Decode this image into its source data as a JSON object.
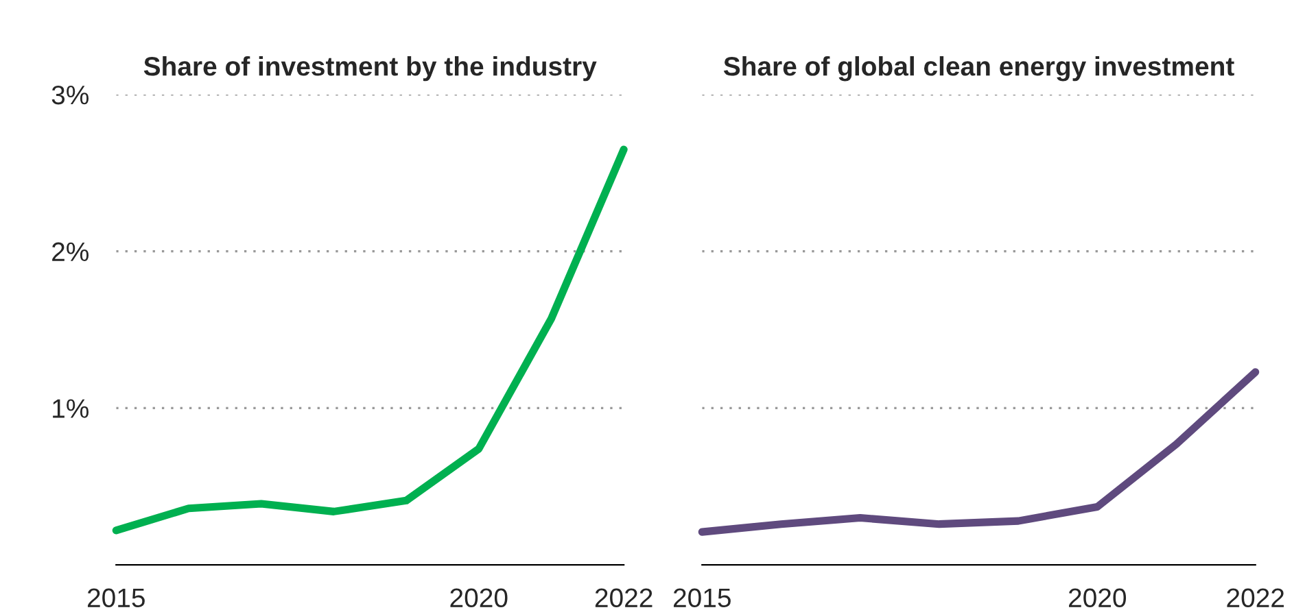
{
  "chart_data": [
    {
      "type": "line",
      "title": "Share of investment by the industry",
      "x": [
        2015,
        2016,
        2017,
        2018,
        2019,
        2020,
        2021,
        2022
      ],
      "series": [
        {
          "color": "#00b050",
          "values": [
            0.22,
            0.36,
            0.39,
            0.34,
            0.41,
            0.74,
            1.57,
            2.65
          ]
        }
      ],
      "xlim": [
        2015,
        2022
      ],
      "xticks": [
        2015,
        2020,
        2022
      ],
      "ylim": [
        0,
        3
      ],
      "yticks": [
        {
          "value": 1,
          "label": "1%"
        },
        {
          "value": 2,
          "label": "2%"
        },
        {
          "value": 3,
          "label": "3%"
        }
      ],
      "grid": "y",
      "legend": false,
      "marker": "none",
      "line_style": "solid"
    },
    {
      "type": "line",
      "title": "Share of global clean energy investment",
      "x": [
        2015,
        2016,
        2017,
        2018,
        2019,
        2020,
        2021,
        2022
      ],
      "series": [
        {
          "color": "#5f4a7e",
          "values": [
            0.21,
            0.26,
            0.3,
            0.26,
            0.28,
            0.37,
            0.77,
            1.23
          ]
        }
      ],
      "xlim": [
        2015,
        2022
      ],
      "xticks": [
        2015,
        2020,
        2022
      ],
      "ylim": [
        0,
        3
      ],
      "yticks": [
        1,
        2,
        3
      ],
      "grid": "y",
      "legend": false,
      "marker": "none",
      "line_style": "solid",
      "tick_labels": "x"
    }
  ]
}
